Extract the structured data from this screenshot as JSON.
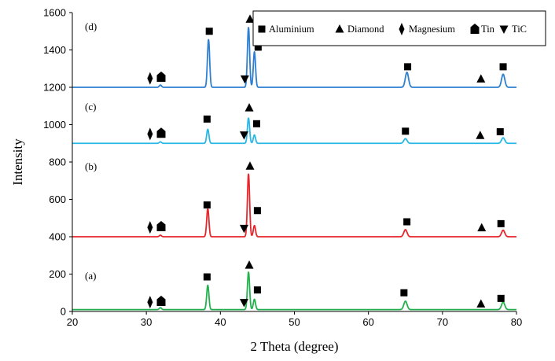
{
  "chart_data": {
    "type": "line",
    "xlabel": "2 Theta (degree)",
    "ylabel": "Intensity",
    "xlim": [
      20,
      80
    ],
    "ylim": [
      0,
      1600
    ],
    "xticks": [
      20,
      30,
      40,
      50,
      60,
      70,
      80
    ],
    "yticks": [
      0,
      200,
      400,
      600,
      800,
      1000,
      1200,
      1400,
      1600
    ],
    "grid": false,
    "legend_position": "top-right",
    "legend": [
      {
        "label": "Aluminium",
        "symbol": "square"
      },
      {
        "label": "Diamond",
        "symbol": "triangle-up"
      },
      {
        "label": "Magnesium",
        "symbol": "diamond"
      },
      {
        "label": "Tin",
        "symbol": "house"
      },
      {
        "label": "TiC",
        "symbol": "triangle-down"
      }
    ],
    "series": [
      {
        "label": "(a)",
        "color": "#22b14c",
        "baseline": 10,
        "peaks": [
          {
            "x": 38.3,
            "y": 140
          },
          {
            "x": 43.8,
            "y": 210
          },
          {
            "x": 44.6,
            "y": 65
          },
          {
            "x": 65.0,
            "y": 55
          },
          {
            "x": 78.2,
            "y": 50
          },
          {
            "x": 31.9,
            "y": 20
          }
        ],
        "markers": [
          {
            "symbol": "diamond",
            "x": 30.5,
            "y": 50
          },
          {
            "symbol": "house",
            "x": 32.0,
            "y": 55
          },
          {
            "symbol": "square",
            "x": 38.2,
            "y": 185
          },
          {
            "symbol": "triangle-up",
            "x": 43.9,
            "y": 248
          },
          {
            "symbol": "triangle-down",
            "x": 43.2,
            "y": 48
          },
          {
            "symbol": "square",
            "x": 45.0,
            "y": 115
          },
          {
            "symbol": "square",
            "x": 64.8,
            "y": 100
          },
          {
            "symbol": "triangle-up",
            "x": 75.2,
            "y": 40
          },
          {
            "symbol": "square",
            "x": 77.9,
            "y": 70
          }
        ]
      },
      {
        "label": "(b)",
        "color": "#e8252b",
        "baseline": 400,
        "peaks": [
          {
            "x": 38.3,
            "y": 550
          },
          {
            "x": 43.8,
            "y": 735
          },
          {
            "x": 44.6,
            "y": 460
          },
          {
            "x": 65.0,
            "y": 438
          },
          {
            "x": 78.2,
            "y": 435
          },
          {
            "x": 31.9,
            "y": 408
          }
        ],
        "markers": [
          {
            "symbol": "diamond",
            "x": 30.5,
            "y": 450
          },
          {
            "symbol": "house",
            "x": 32.0,
            "y": 455
          },
          {
            "symbol": "square",
            "x": 38.2,
            "y": 570
          },
          {
            "symbol": "triangle-up",
            "x": 44.0,
            "y": 778
          },
          {
            "symbol": "triangle-down",
            "x": 43.2,
            "y": 445
          },
          {
            "symbol": "square",
            "x": 45.0,
            "y": 540
          },
          {
            "symbol": "square",
            "x": 65.2,
            "y": 480
          },
          {
            "symbol": "triangle-up",
            "x": 75.3,
            "y": 448
          },
          {
            "symbol": "square",
            "x": 77.9,
            "y": 470
          }
        ]
      },
      {
        "label": "(c)",
        "color": "#29b8e5",
        "baseline": 900,
        "peaks": [
          {
            "x": 38.3,
            "y": 975
          },
          {
            "x": 43.8,
            "y": 1035
          },
          {
            "x": 44.6,
            "y": 945
          },
          {
            "x": 65.0,
            "y": 925
          },
          {
            "x": 78.2,
            "y": 930
          },
          {
            "x": 31.9,
            "y": 908
          }
        ],
        "markers": [
          {
            "symbol": "diamond",
            "x": 30.5,
            "y": 950
          },
          {
            "symbol": "house",
            "x": 32.0,
            "y": 955
          },
          {
            "symbol": "square",
            "x": 38.2,
            "y": 1030
          },
          {
            "symbol": "triangle-up",
            "x": 43.9,
            "y": 1090
          },
          {
            "symbol": "triangle-down",
            "x": 43.2,
            "y": 945
          },
          {
            "symbol": "square",
            "x": 44.9,
            "y": 1005
          },
          {
            "symbol": "square",
            "x": 65.0,
            "y": 965
          },
          {
            "symbol": "triangle-up",
            "x": 75.1,
            "y": 942
          },
          {
            "symbol": "square",
            "x": 77.8,
            "y": 962
          }
        ]
      },
      {
        "label": "(d)",
        "color": "#2d7fd0",
        "baseline": 1200,
        "peaks": [
          {
            "x": 38.4,
            "y": 1455
          },
          {
            "x": 43.8,
            "y": 1520
          },
          {
            "x": 44.6,
            "y": 1390
          },
          {
            "x": 65.2,
            "y": 1280
          },
          {
            "x": 78.2,
            "y": 1270
          },
          {
            "x": 31.9,
            "y": 1212
          }
        ],
        "markers": [
          {
            "symbol": "diamond",
            "x": 30.5,
            "y": 1248
          },
          {
            "symbol": "house",
            "x": 32.0,
            "y": 1255
          },
          {
            "symbol": "square",
            "x": 38.5,
            "y": 1500
          },
          {
            "symbol": "triangle-up",
            "x": 44.0,
            "y": 1565
          },
          {
            "symbol": "triangle-down",
            "x": 43.3,
            "y": 1245
          },
          {
            "symbol": "square",
            "x": 45.1,
            "y": 1415
          },
          {
            "symbol": "square",
            "x": 65.3,
            "y": 1310
          },
          {
            "symbol": "triangle-up",
            "x": 75.2,
            "y": 1245
          },
          {
            "symbol": "square",
            "x": 78.2,
            "y": 1310
          }
        ]
      }
    ]
  }
}
